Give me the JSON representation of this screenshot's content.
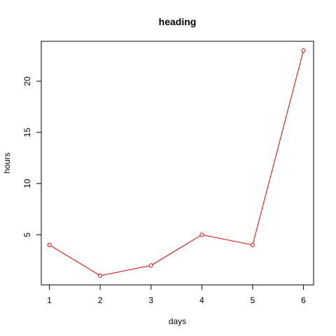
{
  "chart_data": {
    "type": "line",
    "title": "heading",
    "xlabel": "days",
    "ylabel": "hours",
    "x": [
      1,
      2,
      3,
      4,
      5,
      6
    ],
    "series": [
      {
        "values": [
          4,
          1,
          2,
          5,
          4,
          23
        ],
        "color": "#dd0000",
        "marker": "open-circle",
        "line": "solid"
      }
    ],
    "xlim": [
      0.84,
      6.2
    ],
    "ylim": [
      0.1,
      23.9
    ],
    "x_ticks": [
      1,
      2,
      3,
      4,
      5,
      6
    ],
    "y_ticks": [
      5,
      10,
      15,
      20
    ],
    "grid": false,
    "legend": "none",
    "axis_color": "#000000",
    "background": "#ffffff"
  }
}
